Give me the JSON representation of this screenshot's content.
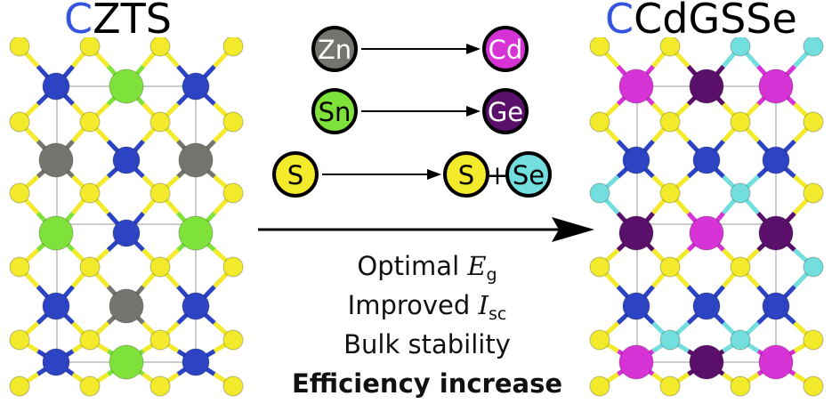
{
  "left_title": {
    "prefix": "C",
    "rest": "ZTS"
  },
  "right_title": {
    "prefix": "C",
    "rest": "CdGSSe"
  },
  "substitutions": [
    {
      "from": "Zn",
      "to": [
        "Cd"
      ]
    },
    {
      "from": "Sn",
      "to": [
        "Ge"
      ]
    },
    {
      "from": "S",
      "to": [
        "S",
        "Se"
      ],
      "joiner": "+"
    }
  ],
  "properties": [
    {
      "text": "Optimal ",
      "symbol": "E",
      "sub": "g"
    },
    {
      "text": "Improved ",
      "symbol": "I",
      "sub": "sc"
    },
    {
      "text": "Bulk stability"
    },
    {
      "text": "Efficiency increase",
      "bold": true
    }
  ],
  "colors": {
    "Zn": "#76746e",
    "Sn": "#7fe23a",
    "Cd": "#d632d6",
    "Ge": "#5a0f6a",
    "S": "#f2ea2a",
    "Se": "#73dede",
    "Cu": "#2c43c4",
    "title_C": "#3355dd"
  }
}
